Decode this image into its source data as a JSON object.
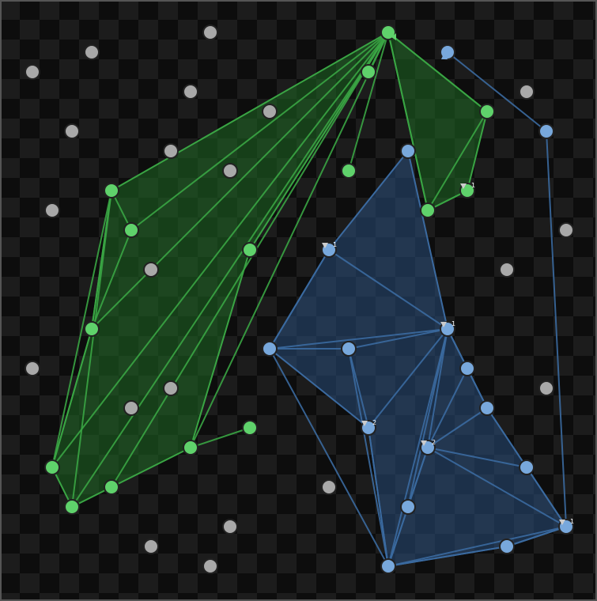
{
  "colors": {
    "background_dark": "#0d0d0d",
    "background_light": "#1c1c1c",
    "border": "#555555",
    "green_fill": "#1f6a25",
    "green_stroke": "#3aa544",
    "green_node": "#5fd26b",
    "blue_fill": "#2a4f7c",
    "blue_stroke": "#3b6aa0",
    "blue_node": "#78a8dc",
    "gray_node": "#a9a9a9",
    "node_outline": "#222222",
    "marker": "#cccccc",
    "label": "#ffffff"
  },
  "players": [
    {
      "name": "green",
      "hub_node": "g_hub"
    },
    {
      "name": "blue",
      "hub_node": "b_hub"
    }
  ],
  "markers": [
    {
      "node": "g_small",
      "label": "1"
    },
    {
      "node": "b1",
      "label": "1"
    },
    {
      "node": "b5",
      "label": "1"
    },
    {
      "node": "b6",
      "label": "2"
    },
    {
      "node": "b8",
      "label": "2"
    },
    {
      "node": "b14",
      "label": "1"
    }
  ]
}
